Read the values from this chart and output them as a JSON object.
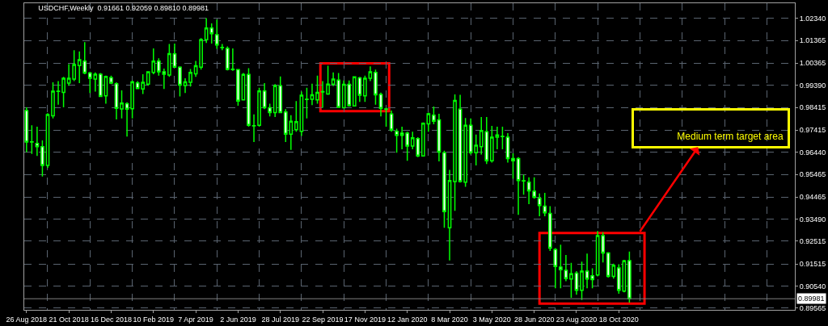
{
  "chart_data": {
    "type": "candlestick",
    "title": "USDCHF,Weekly  0.91661 0.92059 0.89810 0.89981",
    "color": "#00ff00",
    "x": [
      "2018-08-26",
      "2018-09-02",
      "2018-09-09",
      "2018-09-16",
      "2018-09-23",
      "2018-09-30",
      "2018-10-07",
      "2018-10-14",
      "2018-10-21",
      "2018-10-28",
      "2018-11-04",
      "2018-11-11",
      "2018-11-18",
      "2018-11-25",
      "2018-12-02",
      "2018-12-09",
      "2018-12-16",
      "2018-12-23",
      "2018-12-30",
      "2019-01-06",
      "2019-01-13",
      "2019-01-20",
      "2019-01-27",
      "2019-02-03",
      "2019-02-10",
      "2019-02-17",
      "2019-02-24",
      "2019-03-03",
      "2019-03-10",
      "2019-03-17",
      "2019-03-24",
      "2019-03-31",
      "2019-04-07",
      "2019-04-14",
      "2019-04-21",
      "2019-04-28",
      "2019-05-05",
      "2019-05-12",
      "2019-05-19",
      "2019-05-26",
      "2019-06-02",
      "2019-06-09",
      "2019-06-16",
      "2019-06-23",
      "2019-06-30",
      "2019-07-07",
      "2019-07-14",
      "2019-07-21",
      "2019-07-28",
      "2019-08-04",
      "2019-08-11",
      "2019-08-18",
      "2019-08-25",
      "2019-09-01",
      "2019-09-08",
      "2019-09-15",
      "2019-09-22",
      "2019-09-29",
      "2019-10-06",
      "2019-10-13",
      "2019-10-20",
      "2019-10-27",
      "2019-11-03",
      "2019-11-10",
      "2019-11-17",
      "2019-11-24",
      "2019-12-01",
      "2019-12-08",
      "2019-12-15",
      "2019-12-22",
      "2019-12-29",
      "2020-01-05",
      "2020-01-12",
      "2020-01-19",
      "2020-01-26",
      "2020-02-02",
      "2020-02-09",
      "2020-02-16",
      "2020-02-23",
      "2020-03-01",
      "2020-03-08",
      "2020-03-15",
      "2020-03-22",
      "2020-03-29",
      "2020-04-05",
      "2020-04-12",
      "2020-04-19",
      "2020-04-26",
      "2020-05-03",
      "2020-05-10",
      "2020-05-17",
      "2020-05-24",
      "2020-05-31",
      "2020-06-07",
      "2020-06-14",
      "2020-06-21",
      "2020-06-28",
      "2020-07-05",
      "2020-07-12",
      "2020-07-19",
      "2020-07-26",
      "2020-08-02",
      "2020-08-09",
      "2020-08-16",
      "2020-08-23",
      "2020-08-30",
      "2020-09-06",
      "2020-09-13",
      "2020-09-20",
      "2020-09-27",
      "2020-10-04",
      "2020-10-11",
      "2020-10-18",
      "2020-10-25",
      "2020-11-01"
    ],
    "ohlc": [
      [
        0.9828,
        0.9842,
        0.9645,
        0.9689
      ],
      [
        0.9689,
        0.9763,
        0.9637,
        0.969
      ],
      [
        0.9683,
        0.9757,
        0.9628,
        0.9669
      ],
      [
        0.9669,
        0.9696,
        0.9537,
        0.9586
      ],
      [
        0.9586,
        0.9816,
        0.9574,
        0.981
      ],
      [
        0.9805,
        0.9952,
        0.9793,
        0.9913
      ],
      [
        0.9913,
        0.9958,
        0.9854,
        0.9912
      ],
      [
        0.9908,
        0.9976,
        0.9842,
        0.997
      ],
      [
        0.9949,
        1.0032,
        0.9937,
        0.997
      ],
      [
        0.9967,
        1.0094,
        0.9958,
        1.0031
      ],
      [
        1.0026,
        1.0088,
        0.9949,
        1.0052
      ],
      [
        1.0046,
        1.0129,
        0.9988,
        0.9993
      ],
      [
        0.9993,
        0.9999,
        0.9905,
        0.997
      ],
      [
        0.9967,
        0.9996,
        0.9911,
        0.9988
      ],
      [
        0.9988,
        0.9993,
        0.9887,
        0.989
      ],
      [
        0.9893,
        0.9982,
        0.9858,
        0.9978
      ],
      [
        0.9973,
        0.9982,
        0.9944,
        0.9949
      ],
      [
        0.9946,
        0.9952,
        0.9789,
        0.9838
      ],
      [
        0.9835,
        0.9917,
        0.9793,
        0.9861
      ],
      [
        0.9858,
        0.9864,
        0.9713,
        0.9834
      ],
      [
        0.9836,
        0.996,
        0.9793,
        0.9954
      ],
      [
        0.995,
        0.9958,
        0.9923,
        0.9925
      ],
      [
        0.9923,
        0.9988,
        0.9901,
        0.9952
      ],
      [
        0.9944,
        1.0,
        0.9937,
        0.9999
      ],
      [
        0.9996,
        1.0102,
        0.9988,
        1.0046
      ],
      [
        1.0046,
        1.0058,
        0.9982,
        0.9999
      ],
      [
        0.9999,
        1.0013,
        0.9923,
        0.9988
      ],
      [
        0.9984,
        1.0121,
        0.9976,
        1.0079
      ],
      [
        1.0078,
        1.0123,
        1.0017,
        1.0019
      ],
      [
        1.0019,
        1.0023,
        0.989,
        0.994
      ],
      [
        0.9938,
        0.997,
        0.9905,
        0.9954
      ],
      [
        0.9952,
        1.0011,
        0.9934,
        0.9996
      ],
      [
        0.999,
        1.0047,
        0.9976,
        1.0025
      ],
      [
        1.0019,
        1.0147,
        1.0008,
        1.0141
      ],
      [
        1.014,
        1.0235,
        1.0126,
        1.0192
      ],
      [
        1.0192,
        1.0212,
        1.0123,
        1.0167
      ],
      [
        1.0162,
        1.0229,
        1.01,
        1.0117
      ],
      [
        1.0106,
        1.0121,
        1.0094,
        1.0105
      ],
      [
        1.0102,
        1.0111,
        1.0005,
        1.0009
      ],
      [
        1.001,
        1.0102,
        1.0003,
        1.0008
      ],
      [
        1.0008,
        1.0011,
        0.9849,
        0.987
      ],
      [
        0.9875,
        0.9993,
        0.9873,
        0.9987
      ],
      [
        0.9987,
        1.0015,
        0.9757,
        0.9763
      ],
      [
        0.9761,
        0.9811,
        0.9689,
        0.976
      ],
      [
        0.9763,
        0.9928,
        0.9757,
        0.9914
      ],
      [
        0.9914,
        0.9949,
        0.9834,
        0.984
      ],
      [
        0.984,
        0.9858,
        0.9802,
        0.9819
      ],
      [
        0.9819,
        0.9944,
        0.9799,
        0.9937
      ],
      [
        0.9937,
        0.9978,
        0.9816,
        0.9819
      ],
      [
        0.9822,
        0.9834,
        0.9689,
        0.9724
      ],
      [
        0.9724,
        0.9807,
        0.9654,
        0.9781
      ],
      [
        0.9743,
        0.987,
        0.9734,
        0.9779
      ],
      [
        0.9736,
        0.9911,
        0.9716,
        0.9895
      ],
      [
        0.9878,
        0.9928,
        0.9793,
        0.9877
      ],
      [
        0.9878,
        0.9946,
        0.9852,
        0.9897
      ],
      [
        0.9875,
        0.9982,
        0.9858,
        0.9908
      ],
      [
        0.991,
        0.9958,
        0.984,
        0.9911
      ],
      [
        0.9901,
        1.0025,
        0.9897,
        0.9944
      ],
      [
        0.9944,
        0.9996,
        0.9935,
        0.9967
      ],
      [
        0.9962,
        0.9993,
        0.984,
        0.9842
      ],
      [
        0.984,
        0.996,
        0.9838,
        0.9943
      ],
      [
        0.9943,
        0.996,
        0.9846,
        0.9849
      ],
      [
        0.9848,
        0.9979,
        0.9846,
        0.9976
      ],
      [
        0.9972,
        0.9976,
        0.9866,
        0.9895
      ],
      [
        0.9893,
        0.9982,
        0.9866,
        0.997
      ],
      [
        0.997,
        1.0023,
        0.9958,
        0.9999
      ],
      [
        0.9996,
        1.0008,
        0.9854,
        0.9897
      ],
      [
        0.9899,
        0.9907,
        0.9802,
        0.9838
      ],
      [
        0.9835,
        0.984,
        0.9757,
        0.9834
      ],
      [
        0.9813,
        0.9828,
        0.9734,
        0.9742
      ],
      [
        0.9736,
        0.9748,
        0.9642,
        0.9718
      ],
      [
        0.9728,
        0.9757,
        0.9657,
        0.9718
      ],
      [
        0.9728,
        0.9734,
        0.9606,
        0.9671
      ],
      [
        0.9671,
        0.9734,
        0.9657,
        0.9708
      ],
      [
        0.9704,
        0.971,
        0.9622,
        0.9628
      ],
      [
        0.9628,
        0.9775,
        0.9625,
        0.9772
      ],
      [
        0.9769,
        0.9819,
        0.9734,
        0.9814
      ],
      [
        0.9807,
        0.9846,
        0.9767,
        0.9781
      ],
      [
        0.9787,
        0.9814,
        0.9604,
        0.9645
      ],
      [
        0.9642,
        0.9651,
        0.9311,
        0.9382
      ],
      [
        0.9311,
        0.9566,
        0.9167,
        0.9519
      ],
      [
        0.9515,
        0.9899,
        0.9386,
        0.9872
      ],
      [
        0.9834,
        0.9897,
        0.951,
        0.9515
      ],
      [
        0.9512,
        0.9795,
        0.9492,
        0.9763
      ],
      [
        0.9763,
        0.9793,
        0.9634,
        0.9642
      ],
      [
        0.9642,
        0.9722,
        0.9586,
        0.9675
      ],
      [
        0.9669,
        0.9799,
        0.9634,
        0.974
      ],
      [
        0.9734,
        0.9799,
        0.9592,
        0.9606
      ],
      [
        0.9606,
        0.976,
        0.9598,
        0.971
      ],
      [
        0.971,
        0.9757,
        0.9657,
        0.972
      ],
      [
        0.9714,
        0.9757,
        0.9657,
        0.9713
      ],
      [
        0.971,
        0.9728,
        0.9598,
        0.9616
      ],
      [
        0.9616,
        0.9639,
        0.9527,
        0.9606
      ],
      [
        0.9616,
        0.9622,
        0.9368,
        0.9519
      ],
      [
        0.9518,
        0.9545,
        0.9457,
        0.9517
      ],
      [
        0.9512,
        0.9533,
        0.9415,
        0.9474
      ],
      [
        0.9472,
        0.9533,
        0.9439,
        0.9445
      ],
      [
        0.9441,
        0.9462,
        0.9362,
        0.9409
      ],
      [
        0.9406,
        0.9465,
        0.9362,
        0.9377
      ],
      [
        0.9374,
        0.9406,
        0.9209,
        0.9221
      ],
      [
        0.9215,
        0.9221,
        0.9044,
        0.914
      ],
      [
        0.9138,
        0.9236,
        0.9044,
        0.9126
      ],
      [
        0.9123,
        0.9191,
        0.9075,
        0.9087
      ],
      [
        0.9085,
        0.9156,
        0.9002,
        0.9108
      ],
      [
        0.9111,
        0.912,
        0.9016,
        0.9035
      ],
      [
        0.9035,
        0.9162,
        0.8993,
        0.912
      ],
      [
        0.912,
        0.9197,
        0.9044,
        0.9085
      ],
      [
        0.9099,
        0.9132,
        0.9044,
        0.9082
      ],
      [
        0.9103,
        0.9297,
        0.9097,
        0.9276
      ],
      [
        0.9276,
        0.9291,
        0.9158,
        0.92
      ],
      [
        0.92,
        0.9203,
        0.9091,
        0.9097
      ],
      [
        0.9097,
        0.9153,
        0.9087,
        0.9146
      ],
      [
        0.9134,
        0.915,
        0.902,
        0.9035
      ],
      [
        0.9032,
        0.917,
        0.9026,
        0.9165
      ],
      [
        0.91661,
        0.92059,
        0.8981,
        0.89981
      ]
    ],
    "xlim": [
      "2018-08-23",
      "2021-06-08"
    ],
    "xticks": [
      {
        "value": "2018-08-26",
        "label": "26 Aug 2018"
      },
      {
        "value": "2018-10-21",
        "label": "21 Oct 2018"
      },
      {
        "value": "2018-12-16",
        "label": "16 Dec 2018"
      },
      {
        "value": "2019-02-10",
        "label": "10 Feb 2019"
      },
      {
        "value": "2019-04-07",
        "label": "7 Apr 2019"
      },
      {
        "value": "2019-06-02",
        "label": "2 Jun 2019"
      },
      {
        "value": "2019-07-28",
        "label": "28 Jul 2019"
      },
      {
        "value": "2019-09-22",
        "label": "22 Sep 2019"
      },
      {
        "value": "2019-11-17",
        "label": "17 Nov 2019"
      },
      {
        "value": "2020-01-12",
        "label": "12 Jan 2020"
      },
      {
        "value": "2020-03-08",
        "label": "8 Mar 2020"
      },
      {
        "value": "2020-05-03",
        "label": "3 May 2020"
      },
      {
        "value": "2020-06-28",
        "label": "28 Jun 2020"
      },
      {
        "value": "2020-08-23",
        "label": "23 Aug 2020"
      },
      {
        "value": "2020-10-18",
        "label": "18 Oct 2020"
      },
      {
        "value": "2018-09-23",
        "label": null
      },
      {
        "value": "2018-11-18",
        "label": null
      },
      {
        "value": "2019-01-13",
        "label": null
      },
      {
        "value": "2019-03-10",
        "label": null
      },
      {
        "value": "2019-05-05",
        "label": null
      },
      {
        "value": "2019-06-30",
        "label": null
      },
      {
        "value": "2019-08-25",
        "label": null
      },
      {
        "value": "2019-10-20",
        "label": null
      },
      {
        "value": "2019-12-15",
        "label": null
      },
      {
        "value": "2020-02-09",
        "label": null
      },
      {
        "value": "2020-04-05",
        "label": null
      },
      {
        "value": "2020-05-31",
        "label": null
      },
      {
        "value": "2020-07-26",
        "label": null
      },
      {
        "value": "2020-09-20",
        "label": null
      },
      {
        "value": "2020-11-15",
        "label": null
      },
      {
        "value": "2021-01-10",
        "label": null
      },
      {
        "value": "2021-03-07",
        "label": null
      },
      {
        "value": "2021-05-02",
        "label": null
      }
    ],
    "ylim": [
      0.8949,
      1.0301
    ],
    "yticks": [
      {
        "value": 1.0234,
        "label": "1.02340"
      },
      {
        "value": 1.01365,
        "label": "1.01365"
      },
      {
        "value": 1.00365,
        "label": "1.00365"
      },
      {
        "value": 0.9939,
        "label": "0.99390"
      },
      {
        "value": 0.98415,
        "label": "0.98415"
      },
      {
        "value": 0.97415,
        "label": "0.97415"
      },
      {
        "value": 0.9644,
        "label": "0.96440"
      },
      {
        "value": 0.95465,
        "label": "0.95465"
      },
      {
        "value": 0.94465,
        "label": "0.94465"
      },
      {
        "value": 0.9349,
        "label": "0.93490"
      },
      {
        "value": 0.92515,
        "label": "0.92515"
      },
      {
        "value": 0.91515,
        "label": "0.91515"
      },
      {
        "value": 0.9054,
        "label": "0.90540"
      },
      {
        "value": 0.89565,
        "label": "0.89565"
      }
    ],
    "ref_lines": [
      {
        "axis": "y",
        "value": 0.89981,
        "label": "0.89981",
        "color": "#808080"
      }
    ],
    "annotations": [
      "Medium term target area"
    ],
    "grid": true
  }
}
